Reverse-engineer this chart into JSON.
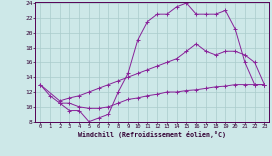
{
  "line1_x": [
    0,
    1,
    2,
    3,
    4,
    5,
    6,
    7,
    8,
    9,
    10,
    11,
    12,
    13,
    14,
    15,
    16,
    17,
    18,
    19,
    20,
    21,
    22,
    23
  ],
  "line1_y": [
    13.0,
    11.5,
    10.5,
    9.5,
    9.5,
    8.0,
    8.5,
    9.0,
    12.0,
    14.5,
    19.0,
    21.5,
    22.5,
    22.5,
    23.5,
    24.0,
    22.5,
    22.5,
    22.5,
    23.0,
    20.5,
    16.0,
    13.0,
    13.0
  ],
  "line2_x": [
    0,
    2,
    3,
    4,
    5,
    6,
    7,
    8,
    9,
    10,
    11,
    12,
    13,
    14,
    15,
    16,
    17,
    18,
    19,
    20,
    21,
    22,
    23
  ],
  "line2_y": [
    13.0,
    10.8,
    11.2,
    11.5,
    12.0,
    12.5,
    13.0,
    13.5,
    14.0,
    14.5,
    15.0,
    15.5,
    16.0,
    16.5,
    17.5,
    18.5,
    17.5,
    17.0,
    17.5,
    17.5,
    17.0,
    16.0,
    13.0
  ],
  "line3_x": [
    2,
    3,
    4,
    5,
    6,
    7,
    8,
    9,
    10,
    11,
    12,
    13,
    14,
    15,
    16,
    17,
    18,
    19,
    20,
    21,
    22,
    23
  ],
  "line3_y": [
    10.5,
    10.5,
    10.0,
    9.8,
    9.8,
    10.0,
    10.5,
    11.0,
    11.2,
    11.5,
    11.7,
    12.0,
    12.0,
    12.2,
    12.3,
    12.5,
    12.7,
    12.8,
    13.0,
    13.0,
    13.0,
    13.0
  ],
  "xlabel": "Windchill (Refroidissement éolien,°C)",
  "bg_color": "#cde8e8",
  "grid_color": "#aacccc",
  "line_color": "#882299",
  "xlim": [
    -0.5,
    23.5
  ],
  "ylim": [
    8,
    24.2
  ],
  "yticks": [
    8,
    10,
    12,
    14,
    16,
    18,
    20,
    22,
    24
  ],
  "xticks": [
    0,
    1,
    2,
    3,
    4,
    5,
    6,
    7,
    8,
    9,
    10,
    11,
    12,
    13,
    14,
    15,
    16,
    17,
    18,
    19,
    20,
    21,
    22,
    23
  ]
}
